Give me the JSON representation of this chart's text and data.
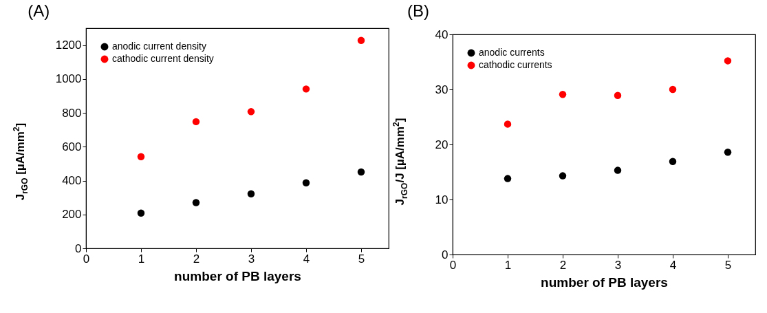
{
  "chart_data": [
    {
      "type": "scatter",
      "title": "(A)",
      "xlabel": "number of PB layers",
      "ylabel": "J$_{rGO}$ [µA/mm$^{2}$]",
      "x": [
        1,
        2,
        3,
        4,
        5
      ],
      "marker": "circle",
      "legend": "top left",
      "xlim": [
        0,
        5.5
      ],
      "ylim": [
        0,
        1300
      ],
      "xticks": [
        0,
        1,
        2,
        3,
        4,
        5
      ],
      "yticks": [
        0,
        200,
        400,
        600,
        800,
        1000,
        1200
      ],
      "series": [
        {
          "name": "anodic current density",
          "color": "#000000",
          "values": [
            208,
            270,
            322,
            387,
            451
          ]
        },
        {
          "name": "cathodic current density",
          "color": "#ff0000",
          "values": [
            541,
            748,
            807,
            941,
            1228
          ]
        }
      ]
    },
    {
      "type": "scatter",
      "title": "(B)",
      "xlabel": "number of PB layers",
      "ylabel": "J$_{rGO}$/J [µA/mm$^{2}$]",
      "x": [
        1,
        2,
        3,
        4,
        5
      ],
      "marker": "circle",
      "legend": "top left",
      "xlim": [
        0,
        5.5
      ],
      "ylim": [
        0,
        40
      ],
      "xticks": [
        0,
        1,
        2,
        3,
        4,
        5
      ],
      "yticks": [
        0,
        10,
        20,
        30,
        40
      ],
      "series": [
        {
          "name": "anodic currents",
          "color": "#000000",
          "values": [
            13.8,
            14.3,
            15.3,
            16.9,
            18.6
          ]
        },
        {
          "name": "cathodic currents",
          "color": "#ff0000",
          "values": [
            23.7,
            29.1,
            28.9,
            30.0,
            35.2
          ]
        }
      ]
    }
  ]
}
